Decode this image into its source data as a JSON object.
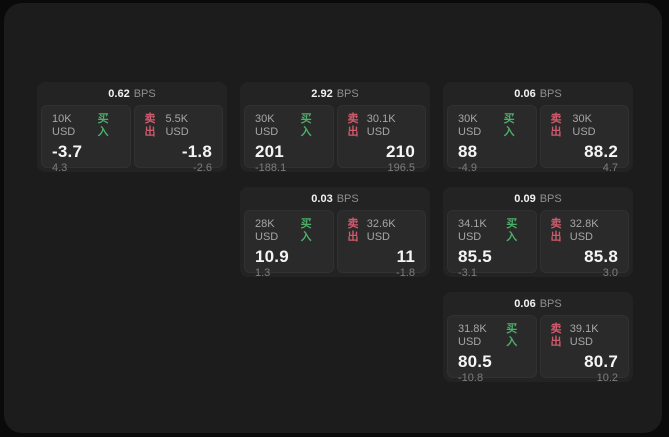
{
  "labels": {
    "bps_unit": "BPS",
    "buy": "买入",
    "sell": "卖出"
  },
  "colors": {
    "page_bg": "#0a0a0a",
    "surface_bg": "#1c1c1c",
    "card_bg": "#232323",
    "tile_bg": "#2a2a2a",
    "buy_green": "#4caf68",
    "sell_red": "#d05a6c"
  },
  "cards": [
    {
      "bps": "0.62",
      "buy": {
        "amount": "10K USD",
        "price": "-3.7",
        "change": "4.3"
      },
      "sell": {
        "amount": "5.5K USD",
        "price": "-1.8",
        "change": "-2.6"
      }
    },
    {
      "bps": "2.92",
      "buy": {
        "amount": "30K USD",
        "price": "201",
        "change": "-188.1"
      },
      "sell": {
        "amount": "30.1K USD",
        "price": "210",
        "change": "196.5"
      }
    },
    {
      "bps": "0.06",
      "buy": {
        "amount": "30K USD",
        "price": "88",
        "change": "-4.9"
      },
      "sell": {
        "amount": "30K USD",
        "price": "88.2",
        "change": "4.7"
      }
    },
    {
      "bps": "0.03",
      "buy": {
        "amount": "28K USD",
        "price": "10.9",
        "change": "1.3"
      },
      "sell": {
        "amount": "32.6K USD",
        "price": "11",
        "change": "-1.8"
      }
    },
    {
      "bps": "0.09",
      "buy": {
        "amount": "34.1K USD",
        "price": "85.5",
        "change": "-3.1"
      },
      "sell": {
        "amount": "32.8K USD",
        "price": "85.8",
        "change": "3.0"
      }
    },
    {
      "bps": "0.06",
      "buy": {
        "amount": "31.8K USD",
        "price": "80.5",
        "change": "-10.8"
      },
      "sell": {
        "amount": "39.1K USD",
        "price": "80.7",
        "change": "10.2"
      }
    }
  ]
}
